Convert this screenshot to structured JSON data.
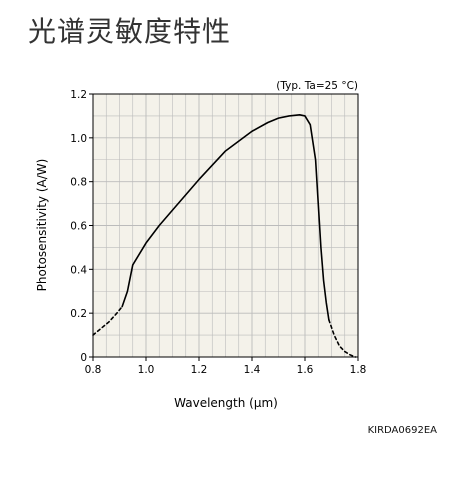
{
  "page": {
    "title": "光谱灵敏度特性",
    "figure_code": "KIRDA0692EA"
  },
  "chart_data": {
    "type": "line",
    "title": "",
    "annotation": "(Typ. Ta=25 °C)",
    "xlabel": "Wavelength (µm)",
    "ylabel": "Photosensitivity (A/W)",
    "xlim": [
      0.8,
      1.8
    ],
    "ylim": [
      0,
      1.2
    ],
    "xticks": [
      0.8,
      1.0,
      1.2,
      1.4,
      1.6,
      1.8
    ],
    "xtick_labels": [
      "0.8",
      "1.0",
      "1.2",
      "1.4",
      "1.6",
      "1.8"
    ],
    "yticks": [
      0,
      0.2,
      0.4,
      0.6,
      0.8,
      1.0,
      1.2
    ],
    "ytick_labels": [
      "0",
      "0.2",
      "0.4",
      "0.6",
      "0.8",
      "1.0",
      "1.2"
    ],
    "grid": true,
    "minor_grid_step_x": 0.05,
    "minor_grid_step_y": 0.1,
    "line_color": "#000000",
    "grid_color": "#bbbbbb",
    "plot_background": "#f4f2ea",
    "series": [
      {
        "style": "dashed",
        "x": [
          0.8,
          0.83,
          0.86,
          0.89,
          0.91
        ],
        "y": [
          0.1,
          0.13,
          0.16,
          0.2,
          0.23
        ]
      },
      {
        "style": "solid",
        "x": [
          0.91,
          0.93,
          0.95,
          0.98,
          1.0,
          1.05,
          1.1,
          1.2,
          1.3,
          1.4,
          1.46,
          1.5,
          1.54,
          1.58,
          1.6,
          1.62,
          1.64,
          1.65,
          1.66,
          1.67,
          1.68,
          1.69
        ],
        "y": [
          0.23,
          0.3,
          0.42,
          0.48,
          0.52,
          0.6,
          0.67,
          0.81,
          0.94,
          1.03,
          1.07,
          1.09,
          1.1,
          1.105,
          1.1,
          1.06,
          0.9,
          0.7,
          0.5,
          0.35,
          0.25,
          0.17
        ]
      },
      {
        "style": "dashed",
        "x": [
          1.69,
          1.71,
          1.73,
          1.75,
          1.77,
          1.79
        ],
        "y": [
          0.17,
          0.1,
          0.05,
          0.025,
          0.01,
          0.0
        ]
      }
    ]
  }
}
